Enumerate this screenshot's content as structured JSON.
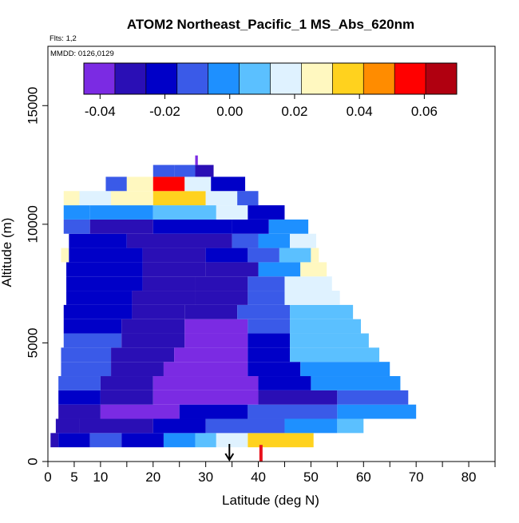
{
  "chart_data": {
    "type": "heatmap",
    "title": "ATOM2 Northeast_Pacific_1 MS_Abs_620nm",
    "flights_label": "Flts: 1,2",
    "dates_label": "MMDD: 0126,0129",
    "xlabel": "Latitude (deg N)",
    "ylabel": "Altitude (m)",
    "xlim": [
      0,
      85
    ],
    "ylim": [
      0,
      17500
    ],
    "x_ticks": [
      0,
      5,
      10,
      20,
      30,
      40,
      50,
      60,
      70,
      80
    ],
    "x_tick_labels": [
      "0",
      "5",
      "10",
      "20",
      "30",
      "40",
      "50",
      "60",
      "70",
      "80"
    ],
    "y_ticks": [
      0,
      5000,
      10000,
      15000
    ],
    "y_tick_labels": [
      "0",
      "5000",
      "10000",
      "15000"
    ],
    "colorbar": {
      "range": [
        -0.045,
        0.07
      ],
      "ticks": [
        -0.04,
        -0.02,
        0.0,
        0.02,
        0.04,
        0.06
      ],
      "tick_labels": [
        "-0.04",
        "-0.02",
        "0.00",
        "0.02",
        "0.04",
        "0.06"
      ],
      "colors": [
        "#7b2be3",
        "#2a0fb5",
        "#0000c8",
        "#3a5ae8",
        "#1e90ff",
        "#5bc0ff",
        "#dff2ff",
        "#fff8c0",
        "#ffd21e",
        "#ff8c00",
        "#ff0000",
        "#b00010"
      ]
    },
    "arrow_latitude": 34.5,
    "bands": [
      {
        "alt": 600,
        "h": 600,
        "lat_min": 0.5,
        "lat_max": 50.5,
        "segments": [
          [
            0.5,
            2,
            -0.03
          ],
          [
            2,
            8,
            -0.02
          ],
          [
            8,
            14,
            -0.01
          ],
          [
            14,
            22,
            -0.025
          ],
          [
            22,
            28,
            0.0
          ],
          [
            28,
            32,
            0.01
          ],
          [
            32,
            38,
            0.02
          ],
          [
            38,
            50.5,
            0.035
          ]
        ]
      },
      {
        "alt": 1200,
        "h": 600,
        "lat_min": 1.5,
        "lat_max": 60,
        "segments": [
          [
            1.5,
            6,
            -0.03
          ],
          [
            6,
            20,
            -0.035
          ],
          [
            20,
            30,
            -0.02
          ],
          [
            30,
            45,
            -0.01
          ],
          [
            45,
            55,
            0.0
          ],
          [
            55,
            60,
            0.012
          ]
        ]
      },
      {
        "alt": 1800,
        "h": 600,
        "lat_min": 2,
        "lat_max": 70,
        "segments": [
          [
            2,
            10,
            -0.03
          ],
          [
            10,
            25,
            -0.04
          ],
          [
            25,
            38,
            -0.025
          ],
          [
            38,
            55,
            -0.012
          ],
          [
            55,
            70,
            -0.005
          ]
        ]
      },
      {
        "alt": 2400,
        "h": 600,
        "lat_min": 2,
        "lat_max": 68.5,
        "segments": [
          [
            2,
            10,
            -0.02
          ],
          [
            10,
            20,
            -0.03
          ],
          [
            20,
            40,
            -0.04
          ],
          [
            40,
            55,
            -0.03
          ],
          [
            55,
            68.5,
            -0.01
          ]
        ]
      },
      {
        "alt": 3000,
        "h": 600,
        "lat_min": 2,
        "lat_max": 67,
        "segments": [
          [
            2,
            10,
            -0.015
          ],
          [
            10,
            20,
            -0.03
          ],
          [
            20,
            40,
            -0.042
          ],
          [
            40,
            50,
            -0.025
          ],
          [
            50,
            67,
            -0.005
          ]
        ]
      },
      {
        "alt": 3600,
        "h": 600,
        "lat_min": 2.5,
        "lat_max": 65,
        "segments": [
          [
            2.5,
            12,
            -0.015
          ],
          [
            12,
            22,
            -0.03
          ],
          [
            22,
            38,
            -0.04
          ],
          [
            38,
            48,
            -0.025
          ],
          [
            48,
            65,
            0.0
          ]
        ]
      },
      {
        "alt": 4200,
        "h": 600,
        "lat_min": 2.5,
        "lat_max": 63,
        "segments": [
          [
            2.5,
            12,
            -0.015
          ],
          [
            12,
            24,
            -0.03
          ],
          [
            24,
            38,
            -0.04
          ],
          [
            38,
            46,
            -0.02
          ],
          [
            46,
            63,
            0.004
          ]
        ]
      },
      {
        "alt": 4800,
        "h": 600,
        "lat_min": 3,
        "lat_max": 61,
        "segments": [
          [
            3,
            14,
            -0.015
          ],
          [
            14,
            26,
            -0.03
          ],
          [
            26,
            38,
            -0.04
          ],
          [
            38,
            46,
            -0.02
          ],
          [
            46,
            61,
            0.006
          ]
        ]
      },
      {
        "alt": 5400,
        "h": 600,
        "lat_min": 3,
        "lat_max": 59.5,
        "segments": [
          [
            3,
            14,
            -0.02
          ],
          [
            14,
            26,
            -0.03
          ],
          [
            26,
            38,
            -0.038
          ],
          [
            38,
            46,
            -0.015
          ],
          [
            46,
            59.5,
            0.008
          ]
        ]
      },
      {
        "alt": 6000,
        "h": 600,
        "lat_min": 3,
        "lat_max": 58,
        "segments": [
          [
            3,
            16,
            -0.02
          ],
          [
            16,
            26,
            -0.03
          ],
          [
            26,
            36,
            -0.035
          ],
          [
            36,
            46,
            -0.01
          ],
          [
            46,
            58,
            0.012
          ]
        ]
      },
      {
        "alt": 6600,
        "h": 600,
        "lat_min": 3.5,
        "lat_max": 55.5,
        "segments": [
          [
            3.5,
            16,
            -0.02
          ],
          [
            16,
            28,
            -0.03
          ],
          [
            28,
            38,
            -0.035
          ],
          [
            38,
            45,
            -0.01
          ],
          [
            45,
            55.5,
            0.015
          ]
        ]
      },
      {
        "alt": 7200,
        "h": 600,
        "lat_min": 3.5,
        "lat_max": 54,
        "segments": [
          [
            3.5,
            18,
            -0.02
          ],
          [
            18,
            28,
            -0.03
          ],
          [
            28,
            38,
            -0.035
          ],
          [
            38,
            45,
            -0.008
          ],
          [
            45,
            54,
            0.02
          ]
        ]
      },
      {
        "alt": 7800,
        "h": 600,
        "lat_min": 3.5,
        "lat_max": 53,
        "segments": [
          [
            3.5,
            18,
            -0.02
          ],
          [
            18,
            30,
            -0.03
          ],
          [
            30,
            40,
            -0.03
          ],
          [
            40,
            48,
            -0.005
          ],
          [
            48,
            53,
            0.025
          ]
        ]
      },
      {
        "alt": 8400,
        "h": 600,
        "lat_min": 2.5,
        "lat_max": 51.5,
        "segments": [
          [
            2.5,
            4,
            0.025
          ],
          [
            4,
            18,
            -0.025
          ],
          [
            18,
            30,
            -0.03
          ],
          [
            30,
            38,
            -0.025
          ],
          [
            38,
            44,
            -0.01
          ],
          [
            44,
            50,
            0.005
          ],
          [
            50,
            51.5,
            0.03
          ]
        ]
      },
      {
        "alt": 9000,
        "h": 600,
        "lat_min": 4,
        "lat_max": 51,
        "segments": [
          [
            4,
            15,
            -0.025
          ],
          [
            15,
            35,
            -0.03
          ],
          [
            35,
            40,
            -0.015
          ],
          [
            40,
            46,
            -0.005
          ],
          [
            46,
            51,
            0.015
          ]
        ]
      },
      {
        "alt": 9600,
        "h": 600,
        "lat_min": 3,
        "lat_max": 49.5,
        "segments": [
          [
            3,
            8,
            -0.01
          ],
          [
            8,
            20,
            -0.03
          ],
          [
            20,
            35,
            -0.025
          ],
          [
            35,
            42,
            -0.02
          ],
          [
            42,
            49.5,
            -0.005
          ]
        ]
      },
      {
        "alt": 10200,
        "h": 600,
        "lat_min": 3,
        "lat_max": 45,
        "segments": [
          [
            3,
            8,
            0.0
          ],
          [
            8,
            20,
            -0.005
          ],
          [
            20,
            32,
            0.005
          ],
          [
            32,
            38,
            0.015
          ],
          [
            38,
            45,
            -0.02
          ]
        ]
      },
      {
        "alt": 10800,
        "h": 600,
        "lat_min": 3,
        "lat_max": 40,
        "segments": [
          [
            3,
            6,
            0.03
          ],
          [
            6,
            12,
            0.015
          ],
          [
            12,
            20,
            0.025
          ],
          [
            20,
            30,
            0.04
          ],
          [
            30,
            36,
            0.02
          ],
          [
            36,
            40,
            -0.015
          ]
        ]
      },
      {
        "alt": 11400,
        "h": 600,
        "lat_min": 11,
        "lat_max": 37.5,
        "segments": [
          [
            11,
            15,
            -0.01
          ],
          [
            15,
            20,
            0.03
          ],
          [
            20,
            26,
            0.055
          ],
          [
            26,
            31,
            0.015
          ],
          [
            31,
            37.5,
            -0.02
          ]
        ]
      },
      {
        "alt": 12000,
        "h": 500,
        "lat_min": 20,
        "lat_max": 31.5,
        "segments": [
          [
            20,
            24,
            -0.015
          ],
          [
            24,
            28,
            -0.01
          ],
          [
            28,
            31.5,
            -0.03
          ]
        ]
      },
      {
        "alt": 12500,
        "h": 400,
        "lat_min": 28,
        "lat_max": 28.5,
        "segments": [
          [
            28,
            28.5,
            -0.045
          ]
        ]
      }
    ],
    "red_marker_latitude": 40.5
  }
}
